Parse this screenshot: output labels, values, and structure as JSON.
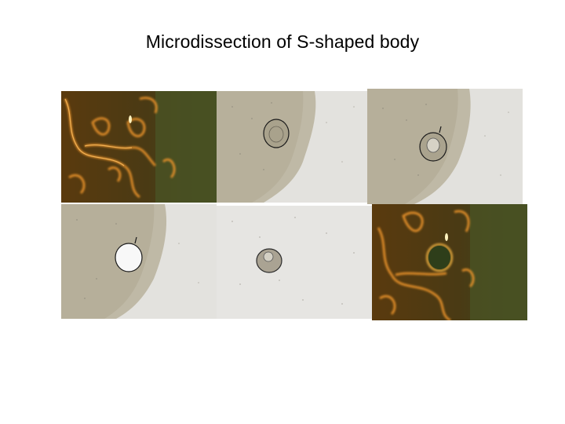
{
  "slide": {
    "title": "Microdissection of S-shaped body"
  },
  "panels": [
    {
      "id": "p1",
      "kind": "fluorescence",
      "content": "kidney tissue, fluorescent tubules"
    },
    {
      "id": "p2",
      "kind": "brightfield",
      "content": "tissue with outlined S-shaped body"
    },
    {
      "id": "p3",
      "kind": "brightfield",
      "content": "tissue with S-shaped body being cut"
    },
    {
      "id": "p4",
      "kind": "brightfield",
      "content": "tissue with empty hole after removal"
    },
    {
      "id": "p5",
      "kind": "brightfield",
      "content": "isolated S-shaped body"
    },
    {
      "id": "p6",
      "kind": "fluorescence",
      "content": "fluorescent tissue with dark removal hole"
    }
  ],
  "colors": {
    "fluor_bg_dark": "#3a3a18",
    "fluor_bg_green": "#4c5226",
    "fluor_orange": "#e08a20",
    "bright_bg": "#e4e3e0",
    "tissue": "#bdb7a4"
  }
}
